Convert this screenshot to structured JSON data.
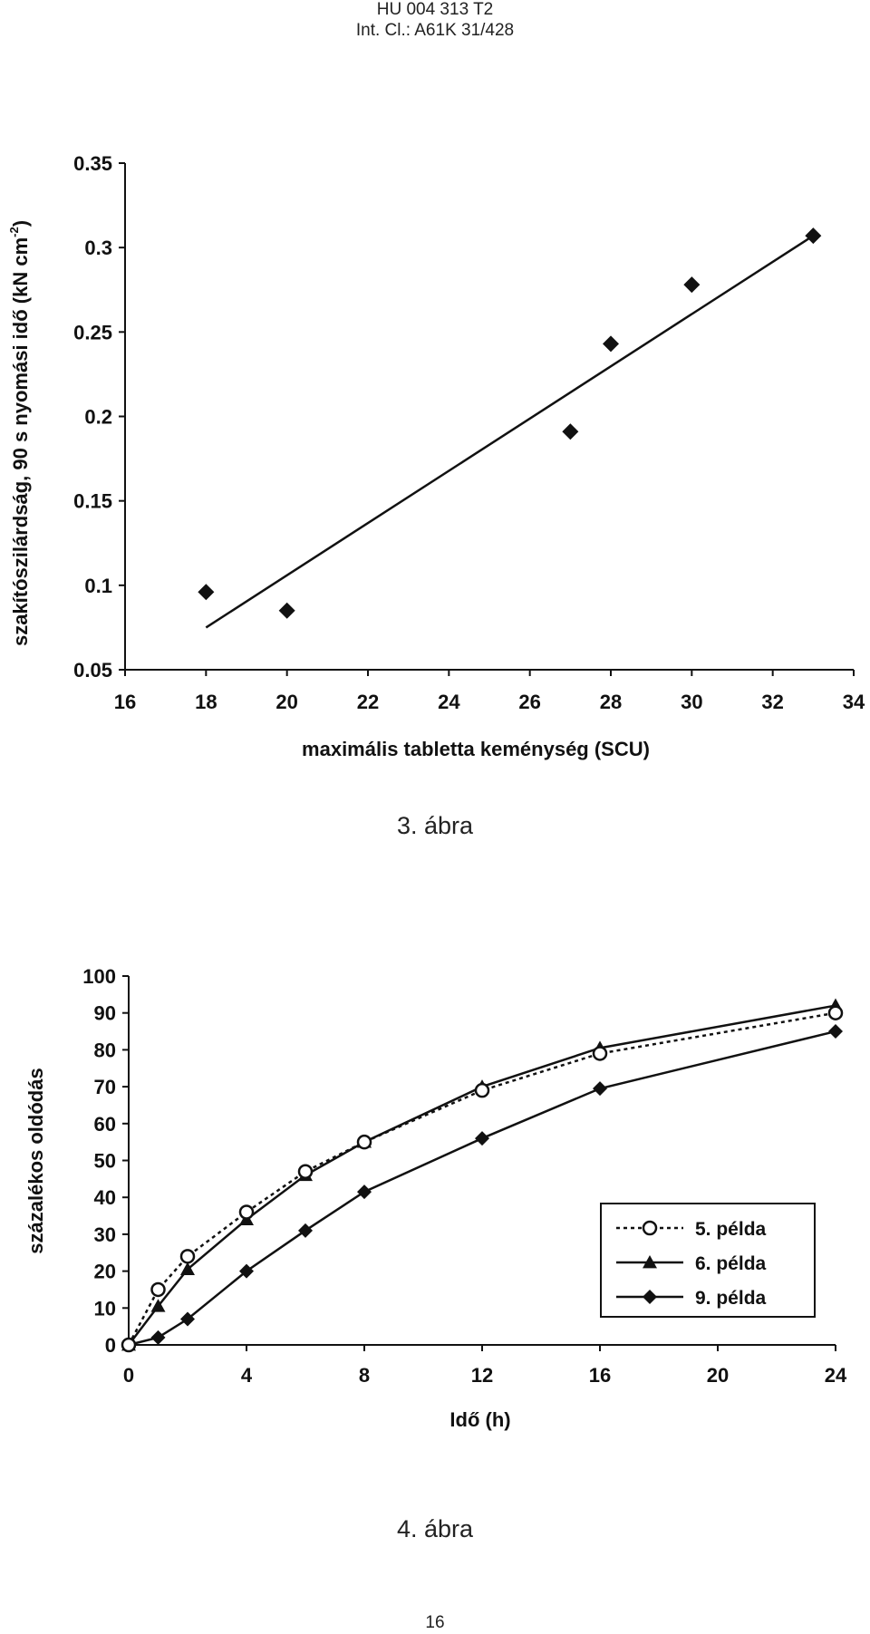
{
  "header": {
    "line1": "HU 004 313 T2",
    "line2": "Int. Cl.: A61K 31/428"
  },
  "figure3": {
    "caption": "3. ábra"
  },
  "figure4": {
    "caption": "4. ábra"
  },
  "page_number": "16",
  "chart_data": [
    {
      "type": "scatter",
      "title": "",
      "xlabel": "maximális tabletta keménység (SCU)",
      "ylabel": "szakítószilárdság, 90 s nyomási idő (kN cm",
      "ylabel_sup": "-2",
      "ylabel_end": ")",
      "xlim": [
        16,
        34
      ],
      "ylim": [
        0.05,
        0.35
      ],
      "x_ticks": [
        "16",
        "18",
        "20",
        "22",
        "24",
        "26",
        "28",
        "30",
        "32",
        "34"
      ],
      "y_ticks": [
        "0.05",
        "0.1",
        "0.15",
        "0.2",
        "0.25",
        "0.3",
        "0.35"
      ],
      "x": [
        18,
        20,
        27,
        28,
        30,
        33
      ],
      "y": [
        0.096,
        0.085,
        0.191,
        0.243,
        0.278,
        0.307
      ],
      "trendline": {
        "x": [
          18,
          33
        ],
        "y": [
          0.075,
          0.307
        ]
      },
      "marker": "diamond",
      "grid": false,
      "legend": "none"
    },
    {
      "type": "line",
      "title": "",
      "xlabel": "Idő (h)",
      "ylabel": "százalékos oldódás",
      "xlim": [
        0,
        24
      ],
      "ylim": [
        0,
        100
      ],
      "x_ticks": [
        "0",
        "4",
        "8",
        "12",
        "16",
        "20",
        "24"
      ],
      "y_ticks": [
        "0",
        "10",
        "20",
        "30",
        "40",
        "50",
        "60",
        "70",
        "80",
        "90",
        "100"
      ],
      "grid": false,
      "legend": "bottom-right",
      "series": [
        {
          "name": "5. példa",
          "marker": "circle-open",
          "style": "dotted",
          "x": [
            0,
            1,
            2,
            4,
            6,
            8,
            12,
            16,
            24
          ],
          "values": [
            0,
            15,
            24,
            36,
            47,
            55,
            69,
            79,
            90
          ]
        },
        {
          "name": "6. példa",
          "marker": "triangle",
          "style": "solid",
          "x": [
            0,
            1,
            2,
            4,
            6,
            8,
            12,
            16,
            24
          ],
          "values": [
            0,
            10.5,
            20.5,
            34,
            46,
            55,
            70,
            80.5,
            92
          ]
        },
        {
          "name": "9. példa",
          "marker": "diamond",
          "style": "solid",
          "x": [
            0,
            1,
            2,
            4,
            6,
            8,
            12,
            16,
            24
          ],
          "values": [
            0,
            2,
            7,
            20,
            31,
            41.5,
            56,
            69.5,
            85
          ]
        }
      ]
    }
  ]
}
